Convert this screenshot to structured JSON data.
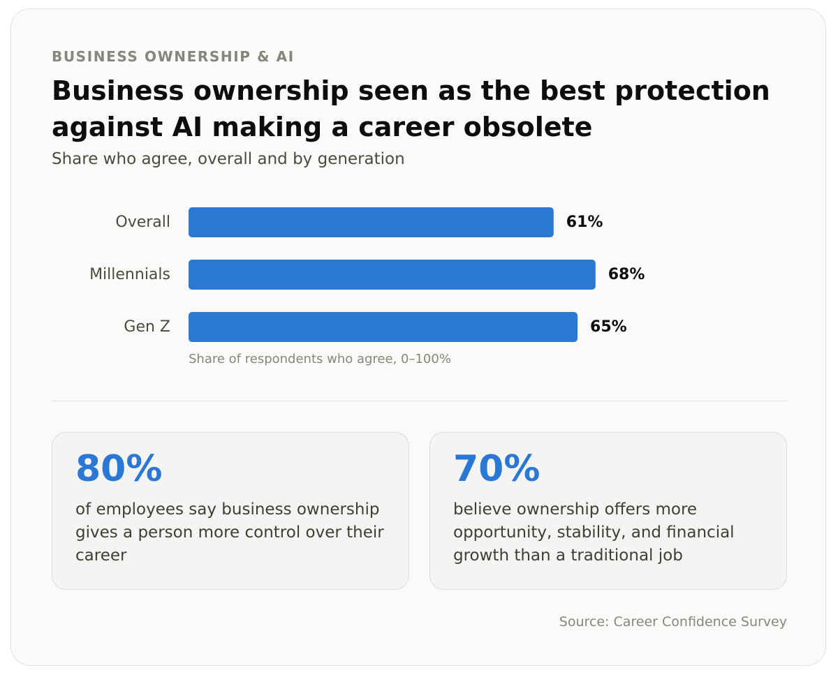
{
  "header": {
    "kicker": "BUSINESS OWNERSHIP & AI",
    "title": "Business ownership seen as the best protection against AI making a career obsolete",
    "subtitle": "Share who agree, overall and by generation"
  },
  "chart_data": {
    "type": "bar",
    "orientation": "horizontal",
    "categories": [
      "Overall",
      "Millennials",
      "Gen Z"
    ],
    "values": [
      61,
      68,
      65
    ],
    "value_labels": [
      "61%",
      "68%",
      "65%"
    ],
    "xlim": [
      0,
      100
    ],
    "axis_note": "Share of respondents who agree, 0–100%",
    "bar_color": "#2b78d4",
    "grid": false
  },
  "stats": [
    {
      "value": "80%",
      "text": "of employees say business ownership gives a person more control over their career"
    },
    {
      "value": "70%",
      "text": "believe ownership offers more opportunity, stability, and financial growth than a traditional job"
    }
  ],
  "footer": {
    "source": "Source: Career Confidence Survey"
  },
  "colors": {
    "accent": "#2b78d4",
    "background": "#fafaf9"
  }
}
